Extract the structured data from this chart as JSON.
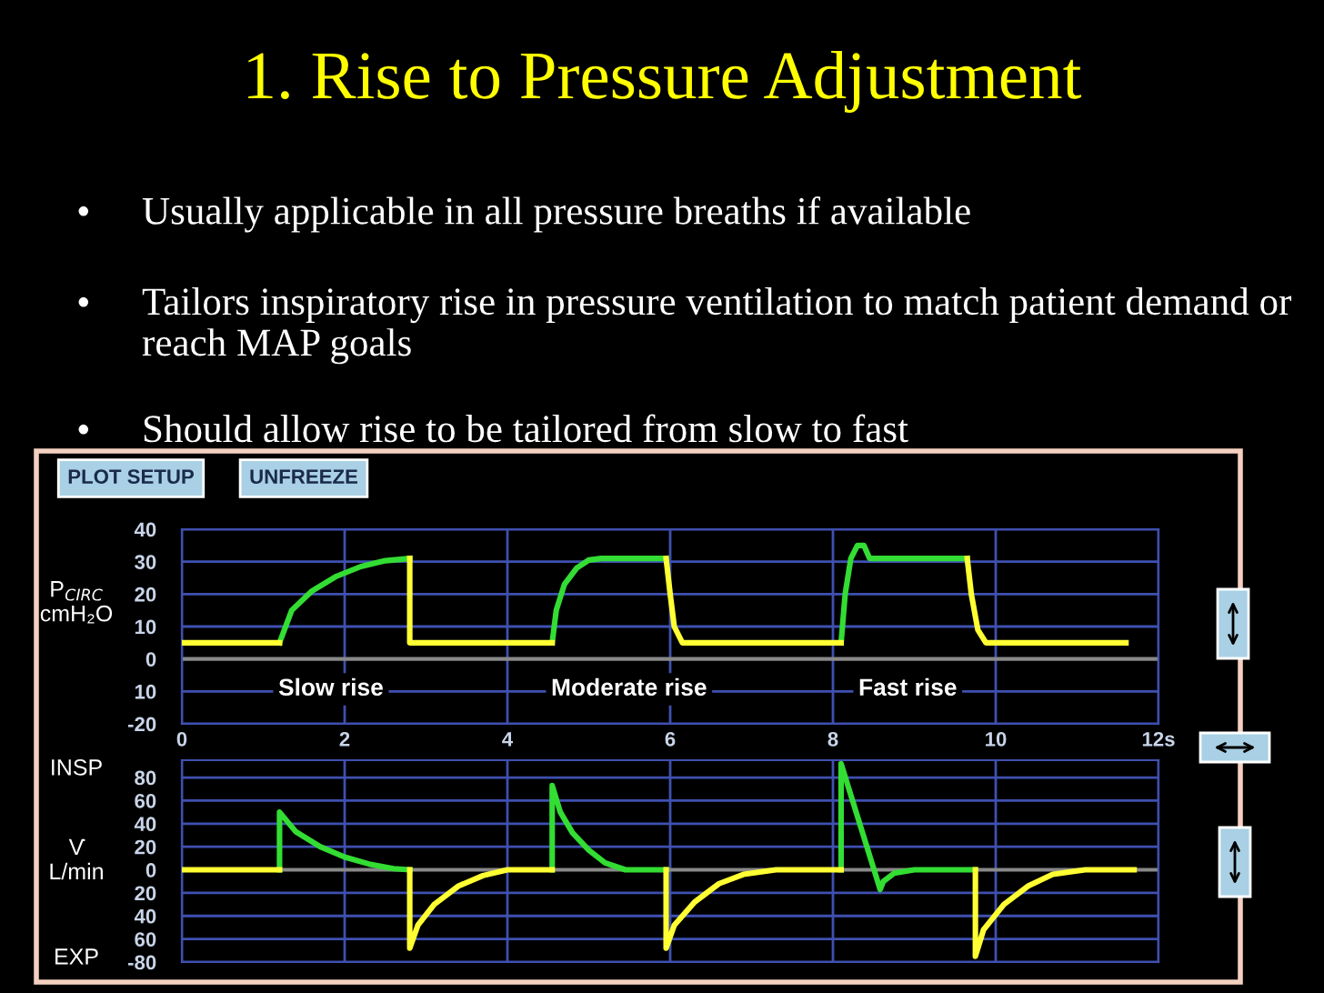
{
  "chart_data": [
    {
      "type": "line",
      "title": "1. Rise to Pressure Adjustment",
      "subtitle": [
        "• Usually applicable in all pressure breaths if available",
        "• Tailors inspiratory rise in pressure ventilation to match patient demand or reach MAP goals",
        "• Should allow rise to be tailored from slow to fast"
      ],
      "ylabel": "P$_{CIRC}$\ncmH₂O",
      "xlim": [
        0,
        12
      ],
      "xticks": [
        0,
        2,
        4,
        6,
        8,
        10,
        {
          "value": 12,
          "label": "12s"
        }
      ],
      "ylim": [
        -20,
        40
      ],
      "yticks": [
        40,
        30,
        20,
        10,
        0,
        {
          "value": -10,
          "label": "10"
        },
        -20
      ],
      "grid": true,
      "ref_lines": [
        {
          "axis": "y",
          "value": 0,
          "color": "#888888"
        }
      ],
      "series": [
        {
          "color": "#33dd33",
          "x": [
            1.2,
            1.35,
            1.6,
            1.9,
            2.2,
            2.5,
            2.8,
            3.5,
            4.55,
            4.6,
            4.7,
            4.85,
            5.0,
            5.15,
            5.95,
            7.0,
            8.1,
            8.15,
            8.22,
            8.3,
            8.38,
            8.45,
            9.65
          ],
          "values": [
            5,
            15,
            21,
            25.5,
            28.5,
            30.3,
            31,
            null,
            5,
            15,
            23,
            28,
            30.5,
            31,
            31,
            null,
            5,
            20,
            31,
            35,
            35,
            31,
            31
          ]
        },
        {
          "color": "#ffff33",
          "x": [
            0,
            1.2,
            2.0,
            2.8,
            2.8,
            4.55,
            5.5,
            5.95,
            6.0,
            6.05,
            6.15,
            8.1,
            9.0,
            9.65,
            9.7,
            9.78,
            9.88,
            11.6
          ],
          "values": [
            5,
            5,
            null,
            31,
            5,
            5,
            null,
            31,
            20,
            10,
            5,
            5,
            null,
            31,
            20,
            9,
            5,
            5
          ]
        }
      ],
      "annotations": [
        "PLOT SETUP",
        "UNFREEZE",
        "Slow rise",
        "Moderate rise",
        "Fast rise"
      ]
    },
    {
      "type": "line",
      "ylabel": "V̇\nL/min",
      "xlim": [
        0,
        12
      ],
      "ylim": [
        -80,
        95
      ],
      "yticks": [
        80,
        60,
        40,
        20,
        0,
        {
          "value": -20,
          "label": "20"
        },
        {
          "value": -40,
          "label": "40"
        },
        {
          "value": -60,
          "label": "60"
        },
        -80
      ],
      "tick_labels": "y",
      "grid": true,
      "ref_lines": [
        {
          "axis": "y",
          "value": 0,
          "color": "#888888"
        }
      ],
      "series": [
        {
          "color": "#33dd33",
          "x": [
            1.2,
            1.2,
            1.4,
            1.7,
            2.0,
            2.3,
            2.6,
            2.8,
            3.5,
            4.55,
            4.55,
            4.65,
            4.8,
            5.0,
            5.2,
            5.45,
            5.95,
            7.0,
            8.1,
            8.1,
            8.58,
            8.62,
            8.75,
            9.0,
            9.75
          ],
          "values": [
            0,
            50,
            33,
            20,
            11,
            5,
            1,
            0,
            null,
            0,
            73,
            50,
            32,
            17,
            6,
            0,
            0,
            null,
            0,
            92,
            -17,
            -10,
            -3,
            0,
            0
          ]
        },
        {
          "color": "#ffff33",
          "x": [
            0,
            1.2,
            2.0,
            2.8,
            2.8,
            2.9,
            3.1,
            3.4,
            3.7,
            4.0,
            4.55,
            5.5,
            5.95,
            5.95,
            6.05,
            6.3,
            6.6,
            6.9,
            7.3,
            8.1,
            9.0,
            9.75,
            9.75,
            9.85,
            10.1,
            10.4,
            10.7,
            11.1,
            11.7
          ],
          "values": [
            0,
            0,
            null,
            0,
            -68,
            -48,
            -30,
            -14,
            -5,
            0,
            0,
            null,
            0,
            -68,
            -48,
            -28,
            -12,
            -4,
            0,
            0,
            null,
            0,
            -75,
            -52,
            -30,
            -14,
            -4,
            0,
            0
          ]
        }
      ],
      "annotations": [
        "INSP",
        "EXP"
      ]
    }
  ]
}
